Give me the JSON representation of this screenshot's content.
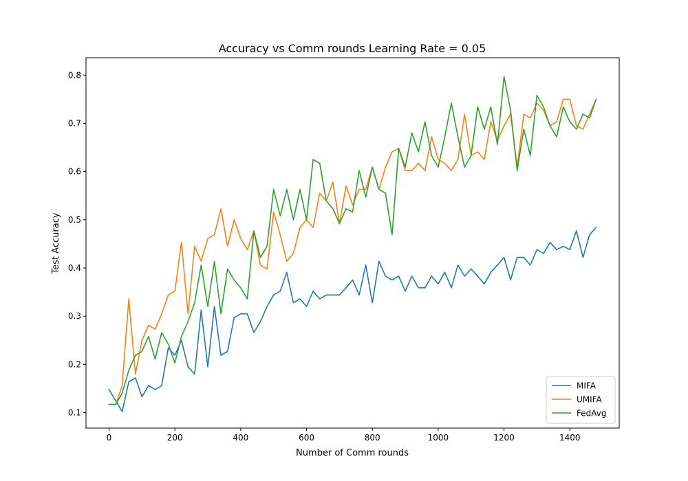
{
  "chart_data": {
    "type": "line",
    "title": "Accuracy vs Comm rounds Learning Rate = 0.05",
    "xlabel": "Number of Comm rounds",
    "ylabel": "Test Accuracy",
    "xlim": [
      -70,
      1550
    ],
    "ylim": [
      0.068,
      0.836
    ],
    "xticks": [
      0,
      200,
      400,
      600,
      800,
      1000,
      1200,
      1400
    ],
    "yticks": [
      0.1,
      0.2,
      0.3,
      0.4,
      0.5,
      0.6,
      0.7,
      0.8
    ],
    "xtick_labels": [
      "0",
      "200",
      "400",
      "600",
      "800",
      "1000",
      "1200",
      "1400"
    ],
    "ytick_labels": [
      "0.1",
      "0.2",
      "0.3",
      "0.4",
      "0.5",
      "0.6",
      "0.7",
      "0.8"
    ],
    "grid": false,
    "legend_position": "lower-right",
    "x": [
      0,
      20,
      40,
      60,
      80,
      100,
      120,
      140,
      160,
      180,
      200,
      220,
      240,
      260,
      280,
      300,
      320,
      340,
      360,
      380,
      400,
      420,
      440,
      460,
      480,
      500,
      520,
      540,
      560,
      580,
      600,
      620,
      640,
      660,
      680,
      700,
      720,
      740,
      760,
      780,
      800,
      820,
      840,
      860,
      880,
      900,
      920,
      940,
      960,
      980,
      1000,
      1020,
      1040,
      1060,
      1080,
      1100,
      1120,
      1140,
      1160,
      1180,
      1200,
      1220,
      1240,
      1260,
      1280,
      1300,
      1320,
      1340,
      1360,
      1380,
      1400,
      1420,
      1440,
      1460,
      1480
    ],
    "series": [
      {
        "name": "MIFA",
        "color": "#1f77b4",
        "values": [
          0.148,
          0.125,
          0.102,
          0.164,
          0.172,
          0.133,
          0.156,
          0.148,
          0.156,
          0.234,
          0.219,
          0.25,
          0.195,
          0.18,
          0.313,
          0.195,
          0.32,
          0.219,
          0.227,
          0.297,
          0.305,
          0.305,
          0.266,
          0.289,
          0.32,
          0.344,
          0.352,
          0.391,
          0.328,
          0.336,
          0.32,
          0.352,
          0.336,
          0.344,
          0.344,
          0.344,
          0.359,
          0.375,
          0.344,
          0.406,
          0.328,
          0.414,
          0.383,
          0.375,
          0.383,
          0.352,
          0.383,
          0.359,
          0.359,
          0.383,
          0.367,
          0.391,
          0.359,
          0.406,
          0.383,
          0.398,
          0.383,
          0.367,
          0.391,
          0.406,
          0.422,
          0.375,
          0.422,
          0.422,
          0.406,
          0.438,
          0.43,
          0.453,
          0.438,
          0.445,
          0.438,
          0.477,
          0.422,
          0.469,
          0.484
        ]
      },
      {
        "name": "UMIFA",
        "color": "#ff7f0e",
        "values": [
          0.117,
          0.117,
          0.156,
          0.336,
          0.18,
          0.25,
          0.281,
          0.273,
          0.305,
          0.344,
          0.352,
          0.453,
          0.305,
          0.445,
          0.414,
          0.461,
          0.469,
          0.523,
          0.445,
          0.5,
          0.461,
          0.438,
          0.477,
          0.406,
          0.398,
          0.516,
          0.469,
          0.414,
          0.43,
          0.484,
          0.5,
          0.484,
          0.555,
          0.539,
          0.578,
          0.492,
          0.57,
          0.531,
          0.563,
          0.563,
          0.609,
          0.563,
          0.609,
          0.641,
          0.648,
          0.602,
          0.602,
          0.617,
          0.602,
          0.672,
          0.625,
          0.617,
          0.602,
          0.625,
          0.719,
          0.633,
          0.641,
          0.625,
          0.703,
          0.664,
          0.695,
          0.719,
          0.609,
          0.719,
          0.711,
          0.742,
          0.727,
          0.695,
          0.703,
          0.75,
          0.75,
          0.695,
          0.688,
          0.719,
          0.75
        ]
      },
      {
        "name": "FedAvg",
        "color": "#2ca02c",
        "values": [
          0.117,
          0.117,
          0.141,
          0.188,
          0.219,
          0.227,
          0.258,
          0.211,
          0.266,
          0.242,
          0.203,
          0.258,
          0.289,
          0.328,
          0.406,
          0.32,
          0.414,
          0.305,
          0.398,
          0.375,
          0.359,
          0.336,
          0.477,
          0.422,
          0.445,
          0.563,
          0.508,
          0.563,
          0.5,
          0.563,
          0.5,
          0.625,
          0.617,
          0.539,
          0.523,
          0.492,
          0.523,
          0.516,
          0.602,
          0.547,
          0.609,
          0.563,
          0.555,
          0.469,
          0.648,
          0.609,
          0.68,
          0.641,
          0.703,
          0.633,
          0.609,
          0.672,
          0.742,
          0.672,
          0.609,
          0.633,
          0.734,
          0.688,
          0.734,
          0.656,
          0.797,
          0.727,
          0.602,
          0.688,
          0.633,
          0.758,
          0.734,
          0.695,
          0.672,
          0.734,
          0.703,
          0.688,
          0.719,
          0.711,
          0.75
        ]
      }
    ]
  }
}
